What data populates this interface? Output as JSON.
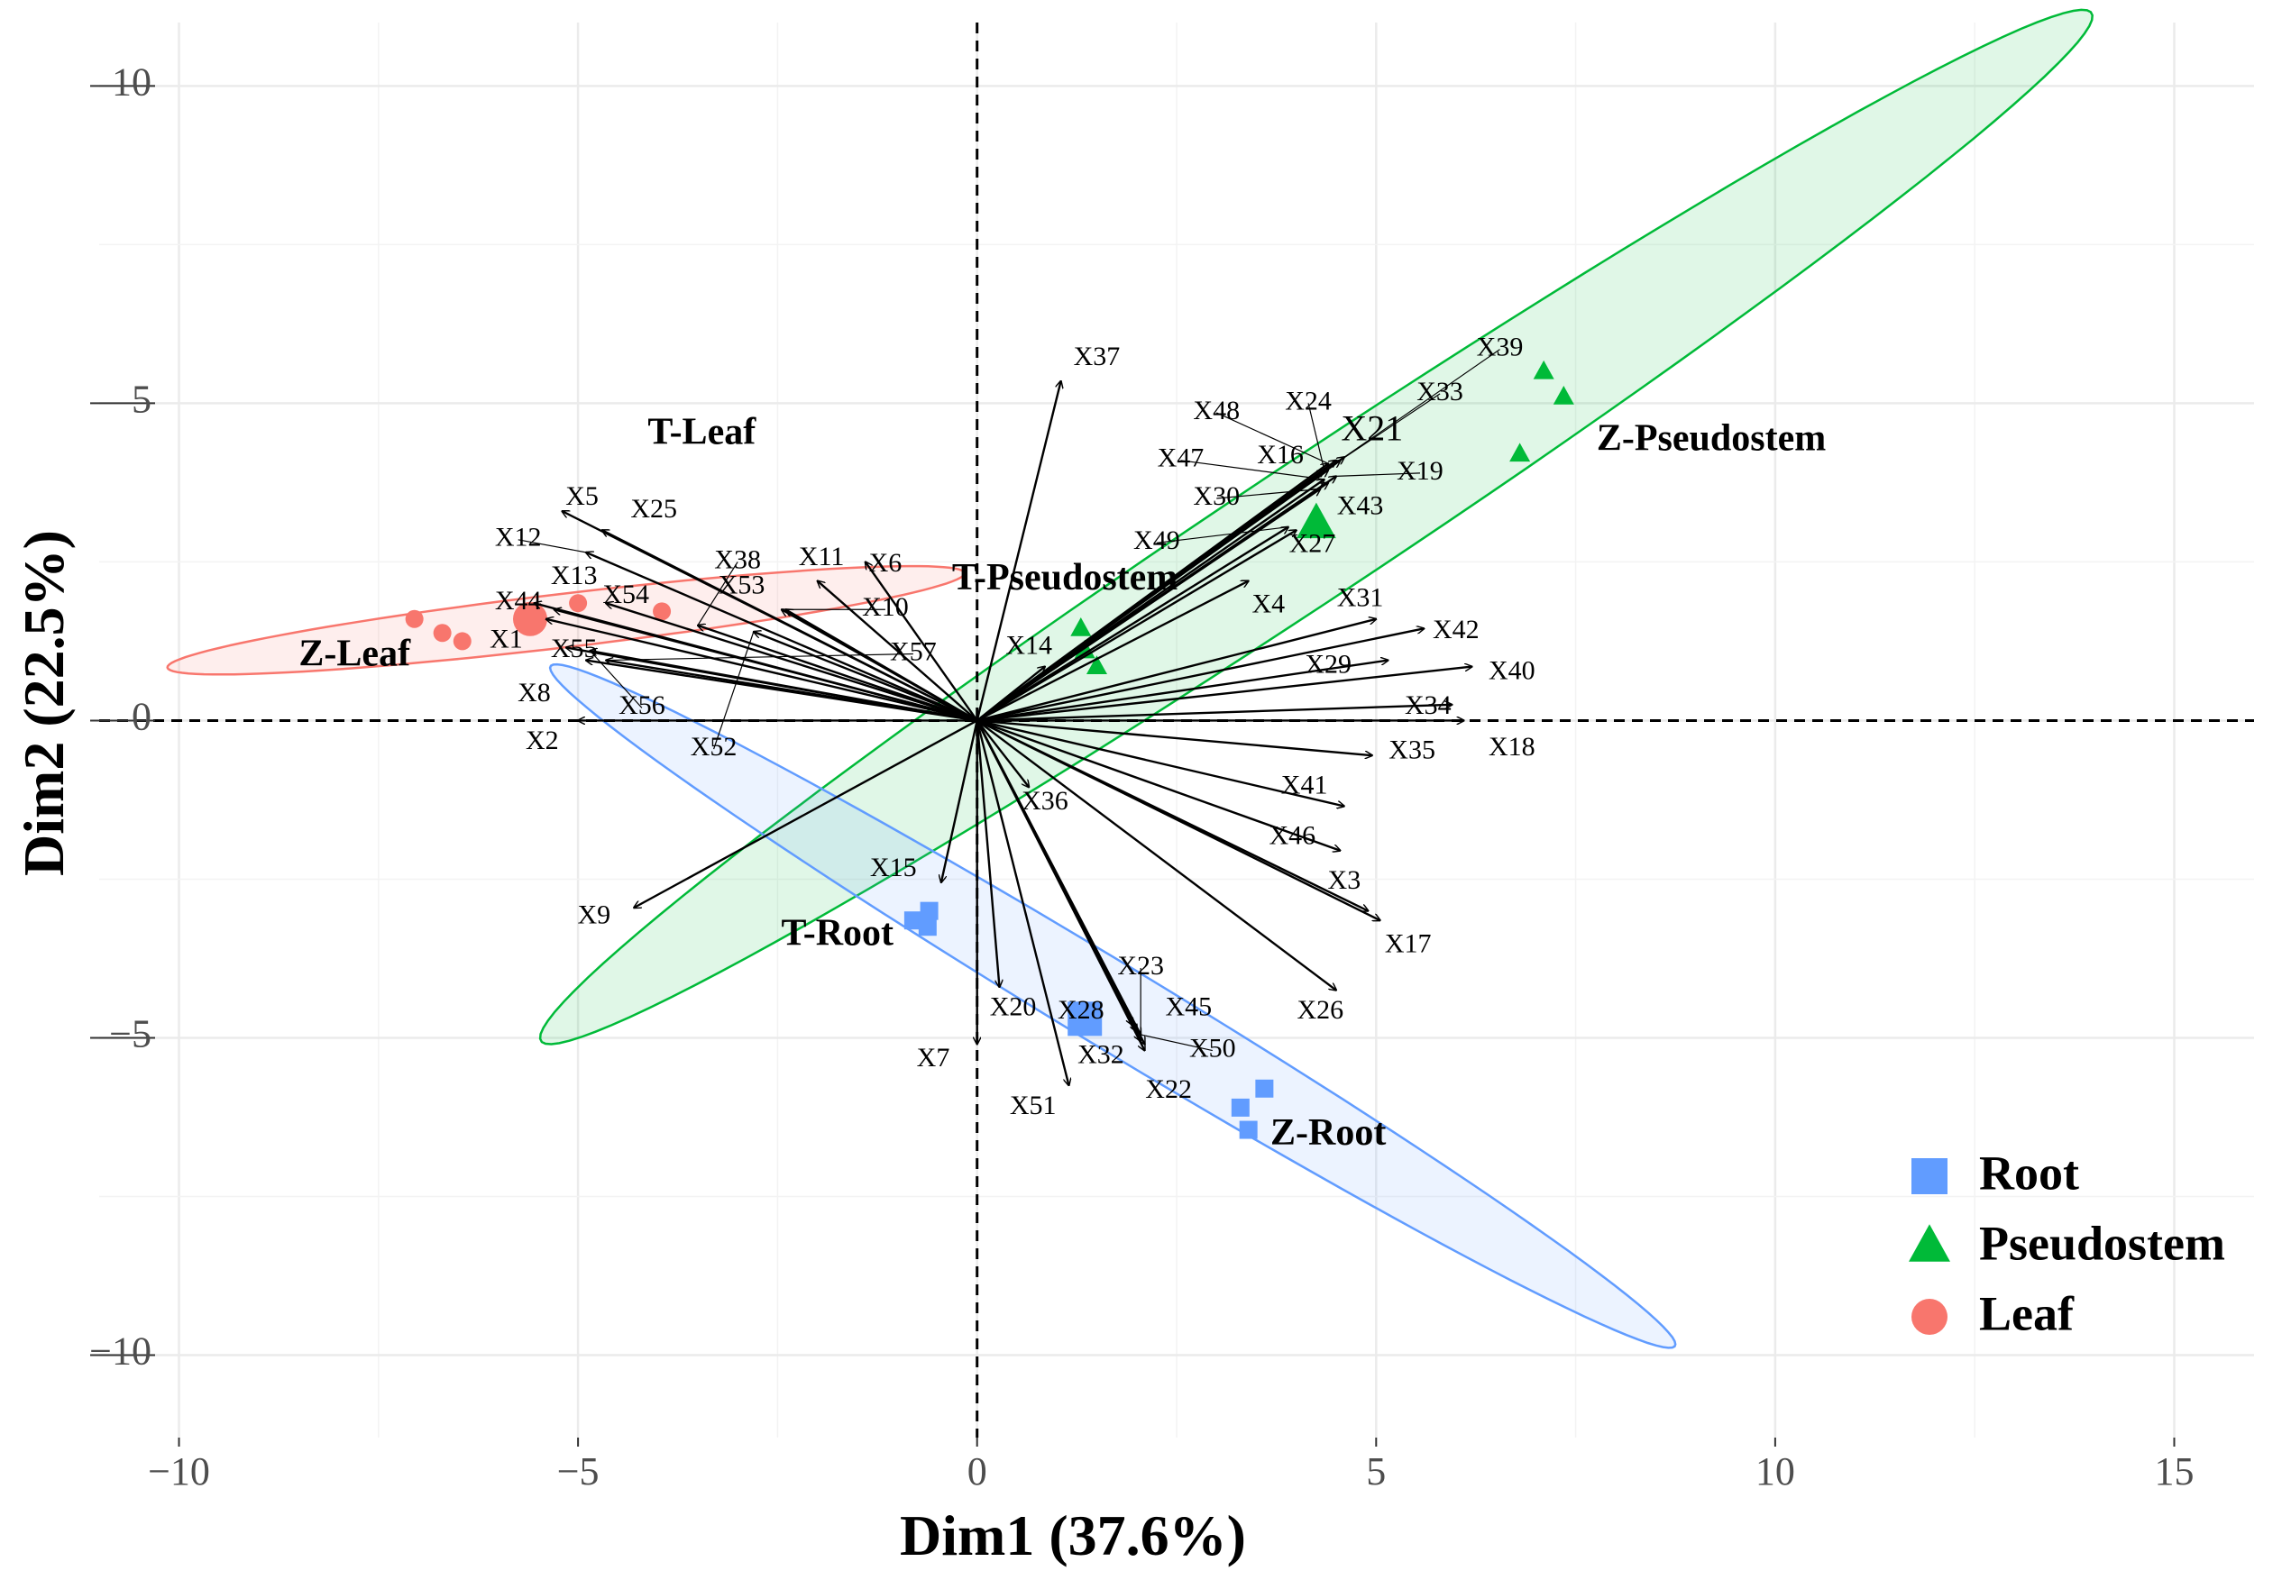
{
  "chart_data": {
    "type": "scatter",
    "subtype": "pca-biplot",
    "xlabel": "Dim1 (37.6%)",
    "ylabel": "Dim2 (22.5%)",
    "xlim": [
      -11,
      16
    ],
    "ylim": [
      -11.3,
      11
    ],
    "xticks": [
      -10,
      -5,
      0,
      5,
      10,
      15
    ],
    "yticks": [
      -10,
      -5,
      0,
      5,
      10
    ],
    "xtick_labels": [
      "−10",
      "−5",
      "0",
      "5",
      "10",
      "15"
    ],
    "ytick_labels": [
      "−10",
      "−5",
      "0",
      "5",
      "10"
    ],
    "grid": true,
    "legend_position": "bottom-right",
    "groups": [
      {
        "name": "Root",
        "color": "#619CFF",
        "marker": "square"
      },
      {
        "name": "Pseudostem",
        "color": "#00BA38",
        "marker": "triangle"
      },
      {
        "name": "Leaf",
        "color": "#F8766D",
        "marker": "circle"
      }
    ],
    "ellipses": [
      {
        "group": "Leaf",
        "cx": -5.15,
        "cy": 1.58,
        "a": 5.05,
        "b": 0.42,
        "angle_deg": 8.5
      },
      {
        "group": "Pseudostem",
        "cx": 4.25,
        "cy": 3.05,
        "a": 12.65,
        "b": 1.0,
        "angle_deg": 39.9
      },
      {
        "group": "Root",
        "cx": 1.7,
        "cy": -4.5,
        "a": 8.85,
        "b": 0.62,
        "angle_deg": -37.3
      }
    ],
    "points": [
      {
        "group": "Leaf",
        "x": -7.05,
        "y": 1.6
      },
      {
        "group": "Leaf",
        "x": -6.7,
        "y": 1.38
      },
      {
        "group": "Leaf",
        "x": -6.45,
        "y": 1.25
      },
      {
        "group": "Leaf",
        "x": -5.0,
        "y": 1.85
      },
      {
        "group": "Leaf",
        "x": -3.95,
        "y": 1.72
      },
      {
        "group": "Pseudostem",
        "x": 1.3,
        "y": 1.45
      },
      {
        "group": "Pseudostem",
        "x": 1.35,
        "y": 1.1
      },
      {
        "group": "Pseudostem",
        "x": 1.5,
        "y": 0.85
      },
      {
        "group": "Pseudostem",
        "x": 6.8,
        "y": 4.2
      },
      {
        "group": "Pseudostem",
        "x": 7.1,
        "y": 5.5
      },
      {
        "group": "Pseudostem",
        "x": 7.35,
        "y": 5.1
      },
      {
        "group": "Root",
        "x": -0.8,
        "y": -3.15
      },
      {
        "group": "Root",
        "x": -0.6,
        "y": -3.0
      },
      {
        "group": "Root",
        "x": -0.62,
        "y": -3.25
      },
      {
        "group": "Root",
        "x": 3.3,
        "y": -6.1
      },
      {
        "group": "Root",
        "x": 3.4,
        "y": -6.45
      },
      {
        "group": "Root",
        "x": 3.6,
        "y": -5.8
      }
    ],
    "centroids": [
      {
        "group": "Leaf",
        "x": -5.6,
        "y": 1.6
      },
      {
        "group": "Pseudostem",
        "x": 4.25,
        "y": 3.1
      },
      {
        "group": "Root",
        "x": 1.35,
        "y": -4.7
      }
    ],
    "group_labels": [
      {
        "text": "T-Leaf",
        "x": -3.45,
        "y": 4.5
      },
      {
        "text": "Z-Leaf",
        "x": -7.8,
        "y": 1.0
      },
      {
        "text": "T-Pseudostem",
        "x": 1.1,
        "y": 2.2
      },
      {
        "text": "Z-Pseudostem",
        "x": 9.2,
        "y": 4.4
      },
      {
        "text": "T-Root",
        "x": -1.75,
        "y": -3.4
      },
      {
        "text": "Z-Root",
        "x": 4.4,
        "y": -6.55
      }
    ],
    "variables": [
      {
        "name": "X1",
        "x": -5.4,
        "y": 1.6,
        "lx": -5.9,
        "ly": 1.25
      },
      {
        "name": "X2",
        "x": -5.0,
        "y": 0.0,
        "lx": -5.45,
        "ly": -0.35
      },
      {
        "name": "X3",
        "x": 4.9,
        "y": -3.0,
        "lx": 4.6,
        "ly": -2.55
      },
      {
        "name": "X4",
        "x": 3.4,
        "y": 2.2,
        "lx": 3.65,
        "ly": 1.8
      },
      {
        "name": "X5",
        "x": -5.2,
        "y": 3.3,
        "lx": -4.95,
        "ly": 3.5
      },
      {
        "name": "X6",
        "x": -1.4,
        "y": 2.5,
        "lx": -1.15,
        "ly": 2.45
      },
      {
        "name": "X7",
        "x": 0.0,
        "y": -5.1,
        "lx": -0.55,
        "ly": -5.35
      },
      {
        "name": "X8",
        "x": -4.9,
        "y": 0.95,
        "lx": -5.55,
        "ly": 0.4
      },
      {
        "name": "X9",
        "x": -4.3,
        "y": -2.95,
        "lx": -4.8,
        "ly": -3.1
      },
      {
        "name": "X10",
        "x": -2.4,
        "y": 1.75,
        "lx": -1.15,
        "ly": 1.75
      },
      {
        "name": "X11",
        "x": -2.0,
        "y": 2.2,
        "lx": -1.95,
        "ly": 2.55
      },
      {
        "name": "X12",
        "x": -4.9,
        "y": 2.65,
        "lx": -5.75,
        "ly": 2.85
      },
      {
        "name": "X13",
        "x": -5.3,
        "y": 1.75,
        "lx": -5.05,
        "ly": 2.25
      },
      {
        "name": "X14",
        "x": 0.85,
        "y": 0.85,
        "lx": 0.65,
        "ly": 1.15
      },
      {
        "name": "X15",
        "x": -0.45,
        "y": -2.55,
        "lx": -1.05,
        "ly": -2.35
      },
      {
        "name": "X16",
        "x": 4.4,
        "y": 3.95,
        "lx": 3.8,
        "ly": 4.15
      },
      {
        "name": "X17",
        "x": 5.05,
        "y": -3.15,
        "lx": 5.4,
        "ly": -3.55
      },
      {
        "name": "X18",
        "x": 6.1,
        "y": 0.0,
        "lx": 6.7,
        "ly": -0.45
      },
      {
        "name": "X19",
        "x": 4.5,
        "y": 3.85,
        "lx": 5.55,
        "ly": 3.9
      },
      {
        "name": "X20",
        "x": 0.28,
        "y": -4.2,
        "lx": 0.45,
        "ly": -4.55
      },
      {
        "name": "X21",
        "x": 4.5,
        "y": 4.1,
        "lx": 4.95,
        "ly": 4.55
      },
      {
        "name": "X22",
        "x": 2.1,
        "y": -5.2,
        "lx": 2.4,
        "ly": -5.85
      },
      {
        "name": "X23",
        "x": 2.05,
        "y": -5.05,
        "lx": 2.05,
        "ly": -3.9
      },
      {
        "name": "X24",
        "x": 4.35,
        "y": 3.95,
        "lx": 4.15,
        "ly": 5.0
      },
      {
        "name": "X25",
        "x": -4.7,
        "y": 3.0,
        "lx": -4.05,
        "ly": 3.3
      },
      {
        "name": "X26",
        "x": 4.5,
        "y": -4.25,
        "lx": 4.3,
        "ly": -4.6
      },
      {
        "name": "X27",
        "x": 4.0,
        "y": 3.0,
        "lx": 4.2,
        "ly": 2.75
      },
      {
        "name": "X28",
        "x": 1.95,
        "y": -4.8,
        "lx": 1.3,
        "ly": -4.6
      },
      {
        "name": "X29",
        "x": 5.15,
        "y": 0.95,
        "lx": 4.4,
        "ly": 0.85
      },
      {
        "name": "X30",
        "x": 4.3,
        "y": 3.65,
        "lx": 3.0,
        "ly": 3.5
      },
      {
        "name": "X31",
        "x": 5.0,
        "y": 1.6,
        "lx": 4.8,
        "ly": 1.9
      },
      {
        "name": "X32",
        "x": 2.1,
        "y": -5.1,
        "lx": 1.55,
        "ly": -5.3
      },
      {
        "name": "X33",
        "x": 4.55,
        "y": 4.1,
        "lx": 5.8,
        "ly": 5.15
      },
      {
        "name": "X34",
        "x": 5.95,
        "y": 0.25,
        "lx": 5.65,
        "ly": 0.2
      },
      {
        "name": "X35",
        "x": 4.95,
        "y": -0.55,
        "lx": 5.45,
        "ly": -0.5
      },
      {
        "name": "X36",
        "x": 0.65,
        "y": -1.05,
        "lx": 0.85,
        "ly": -1.3
      },
      {
        "name": "X37",
        "x": 1.05,
        "y": 5.35,
        "lx": 1.5,
        "ly": 5.7
      },
      {
        "name": "X38",
        "x": -3.5,
        "y": 1.5,
        "lx": -3.0,
        "ly": 2.5
      },
      {
        "name": "X39",
        "x": 4.6,
        "y": 4.15,
        "lx": 6.55,
        "ly": 5.85
      },
      {
        "name": "X40",
        "x": 6.2,
        "y": 0.85,
        "lx": 6.7,
        "ly": 0.75
      },
      {
        "name": "X41",
        "x": 4.6,
        "y": -1.35,
        "lx": 4.1,
        "ly": -1.05
      },
      {
        "name": "X42",
        "x": 5.6,
        "y": 1.45,
        "lx": 6.0,
        "ly": 1.4
      },
      {
        "name": "X43",
        "x": 4.4,
        "y": 3.75,
        "lx": 4.8,
        "ly": 3.35
      },
      {
        "name": "X44",
        "x": -5.55,
        "y": 1.85,
        "lx": -5.75,
        "ly": 1.85
      },
      {
        "name": "X45",
        "x": 2.0,
        "y": -4.9,
        "lx": 2.65,
        "ly": -4.55
      },
      {
        "name": "X46",
        "x": 4.55,
        "y": -2.05,
        "lx": 3.95,
        "ly": -1.85
      },
      {
        "name": "X47",
        "x": 4.35,
        "y": 3.8,
        "lx": 2.55,
        "ly": 4.1
      },
      {
        "name": "X48",
        "x": 4.4,
        "y": 4.05,
        "lx": 3.0,
        "ly": 4.85
      },
      {
        "name": "X49",
        "x": 3.9,
        "y": 3.05,
        "lx": 2.25,
        "ly": 2.8
      },
      {
        "name": "X50",
        "x": 2.05,
        "y": -4.95,
        "lx": 2.95,
        "ly": -5.2
      },
      {
        "name": "X51",
        "x": 1.15,
        "y": -5.75,
        "lx": 0.7,
        "ly": -6.1
      },
      {
        "name": "X52",
        "x": -2.8,
        "y": 1.4,
        "lx": -3.3,
        "ly": -0.45
      },
      {
        "name": "X53",
        "x": -2.45,
        "y": 1.75,
        "lx": -2.95,
        "ly": 2.1
      },
      {
        "name": "X54",
        "x": -4.65,
        "y": 1.85,
        "lx": -4.4,
        "ly": 1.95
      },
      {
        "name": "X55",
        "x": -5.15,
        "y": 1.15,
        "lx": -5.05,
        "ly": 1.1
      },
      {
        "name": "X56",
        "x": -4.85,
        "y": 1.1,
        "lx": -4.2,
        "ly": 0.2
      },
      {
        "name": "X57",
        "x": -4.65,
        "y": 0.95,
        "lx": -0.8,
        "ly": 1.05
      }
    ]
  }
}
